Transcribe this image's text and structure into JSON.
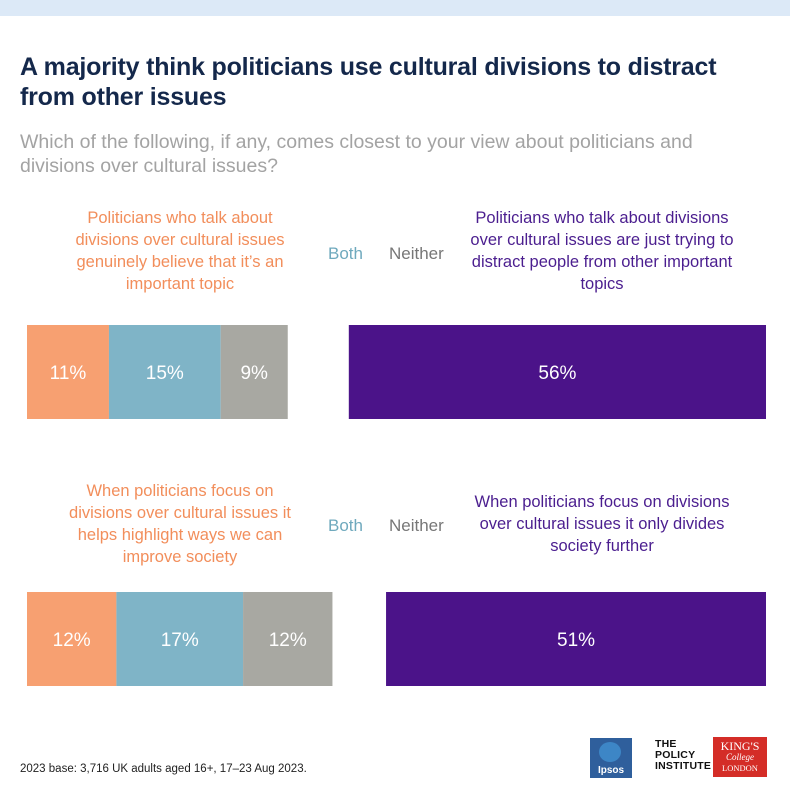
{
  "header": {
    "title": "A majority think politicians use cultural divisions to distract from other issues",
    "subtitle": "Which of the following, if any, comes closest to your view about politicians and divisions over cultural issues?"
  },
  "chart_data": [
    {
      "type": "bar",
      "left_label": "Politicians who talk about divisions over cultural issues genuinely believe that it’s an important topic",
      "both_label": "Both",
      "neither_label": "Neither",
      "right_label": "Politicians who talk about divisions over cultural issues are just trying to distract people from other important topics",
      "segments": [
        {
          "key": "left",
          "value": 11,
          "label": "11%"
        },
        {
          "key": "both",
          "value": 15,
          "label": "15%"
        },
        {
          "key": "neither",
          "value": 9,
          "label": "9%"
        },
        {
          "key": "right",
          "value": 56,
          "label": "56%"
        }
      ]
    },
    {
      "type": "bar",
      "left_label": "When politicians focus on divisions over cultural issues it helps highlight ways we can improve society",
      "both_label": "Both",
      "neither_label": "Neither",
      "right_label": "When politicians focus on divisions over cultural issues it only divides society further",
      "segments": [
        {
          "key": "left",
          "value": 12,
          "label": "12%"
        },
        {
          "key": "both",
          "value": 17,
          "label": "17%"
        },
        {
          "key": "neither",
          "value": 12,
          "label": "12%"
        },
        {
          "key": "right",
          "value": 51,
          "label": "51%"
        }
      ]
    }
  ],
  "colors": {
    "left": "#f7a071",
    "both": "#7fb4c7",
    "neither": "#a8a8a2",
    "right": "#4b1389",
    "title": "#14284b"
  },
  "footer": {
    "note": "2023 base: 3,716 UK adults aged 16+, 17–23 Aug 2023.",
    "logo_ipsos": "Ipsos",
    "logo_policy": "THE POLICY INSTITUTE",
    "logo_kings_1": "KING'S",
    "logo_kings_2": "College",
    "logo_kings_3": "LONDON"
  }
}
